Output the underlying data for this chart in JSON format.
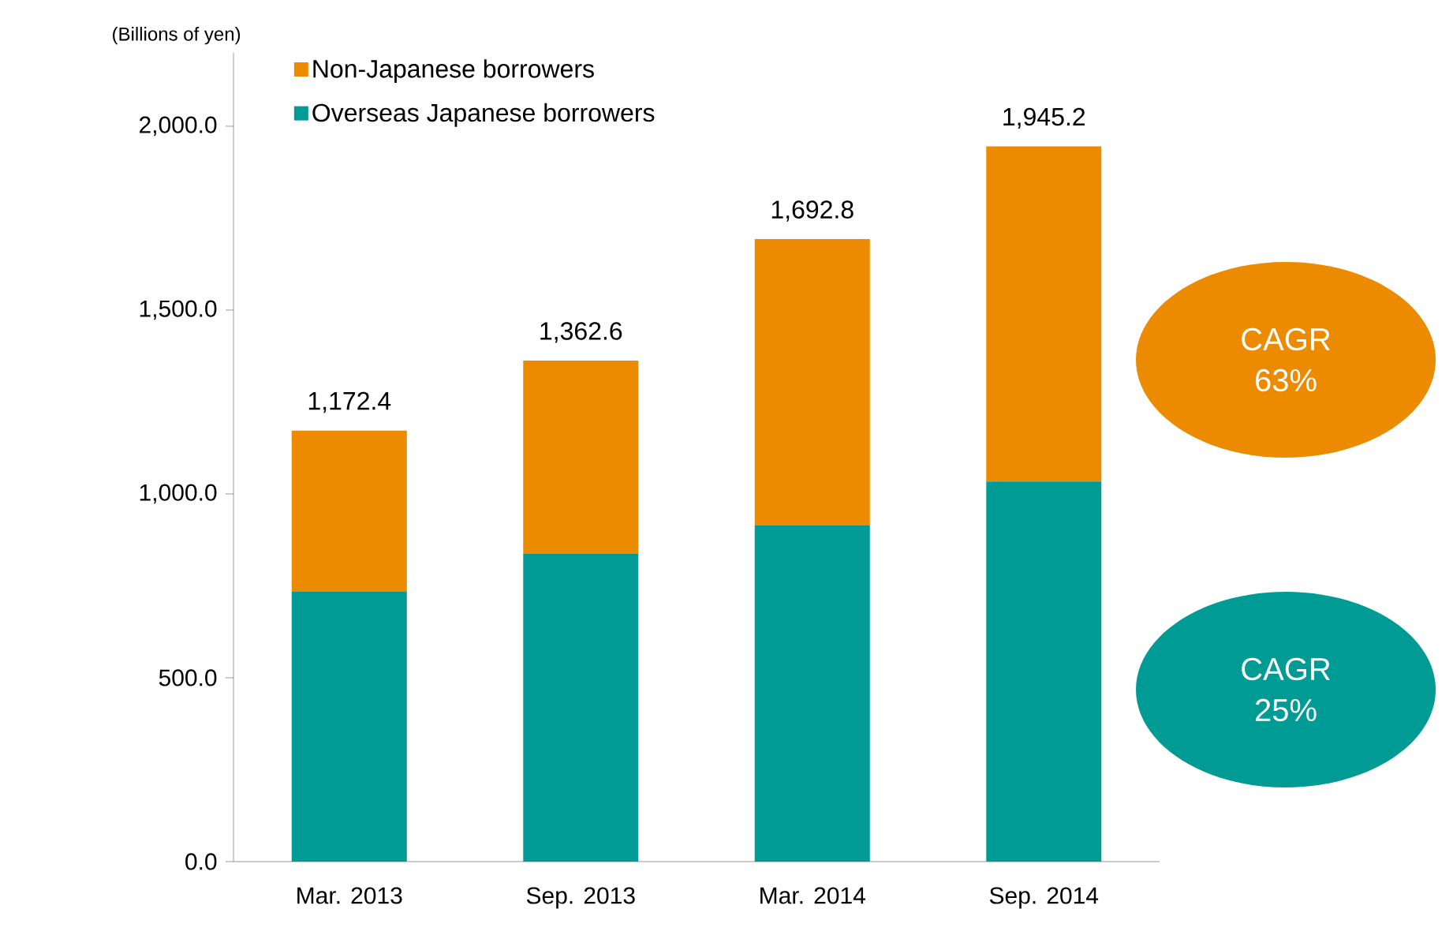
{
  "chart_data": {
    "type": "bar",
    "stacked": true,
    "ylabel": "(Billions of yen)",
    "categories": [
      "Mar. 2013",
      "Sep. 2013",
      "Mar. 2014",
      "Sep. 2014"
    ],
    "series": [
      {
        "name": "Overseas Japanese borrowers",
        "color": "#009b95",
        "values": [
          734,
          837,
          914,
          1034
        ]
      },
      {
        "name": "Non-Japanese borrowers",
        "color": "#ed8b00",
        "values": [
          438.4,
          525.6,
          778.8,
          911.2
        ]
      }
    ],
    "totals": [
      "1,172.4",
      "1,362.6",
      "1,692.8",
      "1,945.2"
    ],
    "ylim": [
      0,
      2200
    ],
    "yticks": [
      {
        "value": 0,
        "label": "0.0"
      },
      {
        "value": 500,
        "label": "500.0"
      },
      {
        "value": 1000,
        "label": "1,000.0"
      },
      {
        "value": 1500,
        "label": "1,500.0"
      },
      {
        "value": 2000,
        "label": "2,000.0"
      }
    ],
    "grid": false,
    "legend": "top left",
    "annotations": [
      "CAGR 63%",
      "CAGR 25%"
    ]
  }
}
